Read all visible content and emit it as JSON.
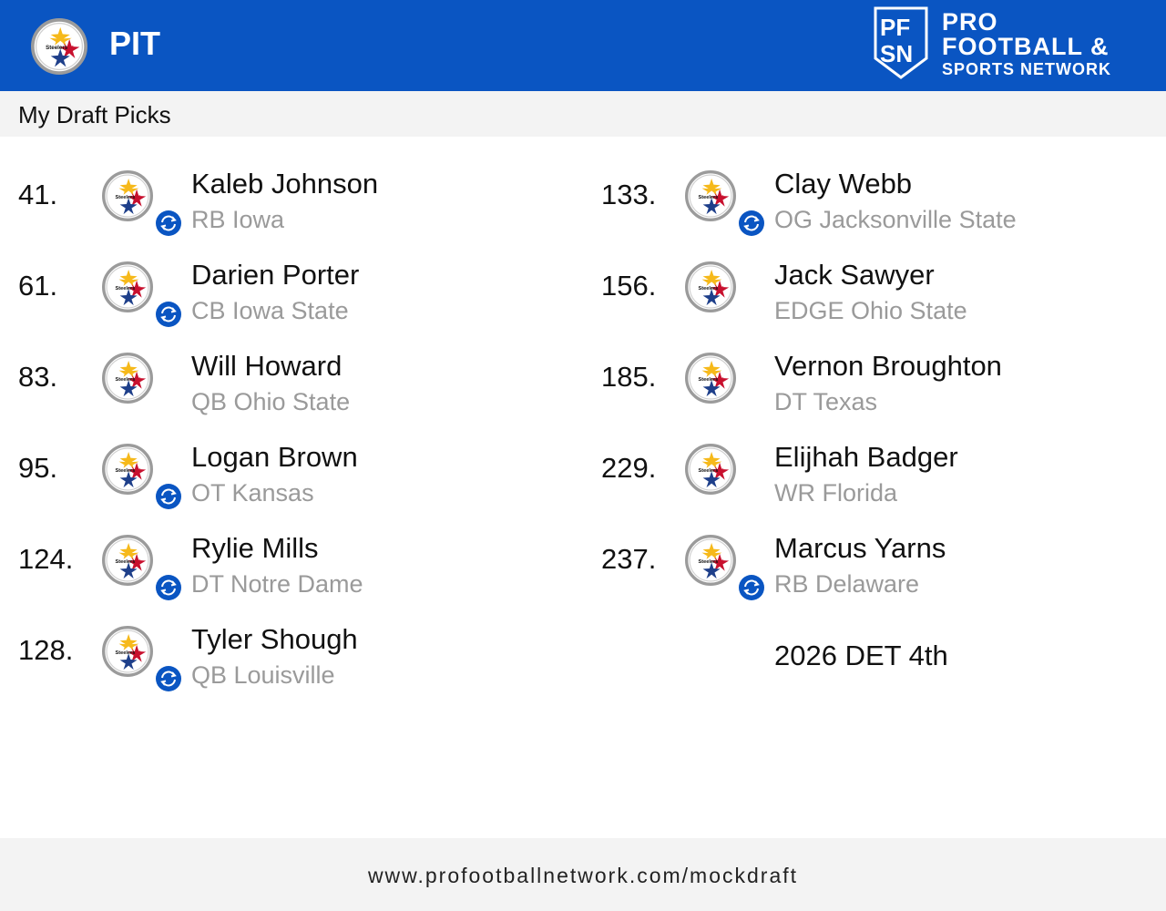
{
  "header": {
    "team_abbr": "PIT",
    "team_logo": "steelers-logo",
    "brand": {
      "line1": "PRO",
      "line2": "FOOTBALL &",
      "line3": "SPORTS NETWORK",
      "monogram_top": "PF",
      "monogram_bottom": "SN"
    },
    "header_color": "#0a55c2"
  },
  "section_title": "My Draft Picks",
  "picks": [
    {
      "number": "41.",
      "name": "Kaleb Johnson",
      "detail": "RB Iowa",
      "traded": true
    },
    {
      "number": "61.",
      "name": "Darien Porter",
      "detail": "CB Iowa State",
      "traded": true
    },
    {
      "number": "83.",
      "name": "Will Howard",
      "detail": "QB Ohio State",
      "traded": false
    },
    {
      "number": "95.",
      "name": "Logan Brown",
      "detail": "OT Kansas",
      "traded": true
    },
    {
      "number": "124.",
      "name": "Rylie Mills",
      "detail": "DT Notre Dame",
      "traded": true
    },
    {
      "number": "128.",
      "name": "Tyler Shough",
      "detail": "QB Louisville",
      "traded": true
    },
    {
      "number": "133.",
      "name": "Clay Webb",
      "detail": "OG Jacksonville State",
      "traded": true
    },
    {
      "number": "156.",
      "name": "Jack Sawyer",
      "detail": "EDGE Ohio State",
      "traded": false
    },
    {
      "number": "185.",
      "name": "Vernon Broughton",
      "detail": "DT Texas",
      "traded": false
    },
    {
      "number": "229.",
      "name": "Elijhah Badger",
      "detail": "WR Florida",
      "traded": false
    },
    {
      "number": "237.",
      "name": "Marcus Yarns",
      "detail": "RB Delaware",
      "traded": true
    }
  ],
  "future_pick": "2026 DET 4th",
  "footer_url": "www.profootballnetwork.com/mockdraft",
  "icons": {
    "trade": "trade-swap-icon",
    "team": "steelers-logo"
  }
}
